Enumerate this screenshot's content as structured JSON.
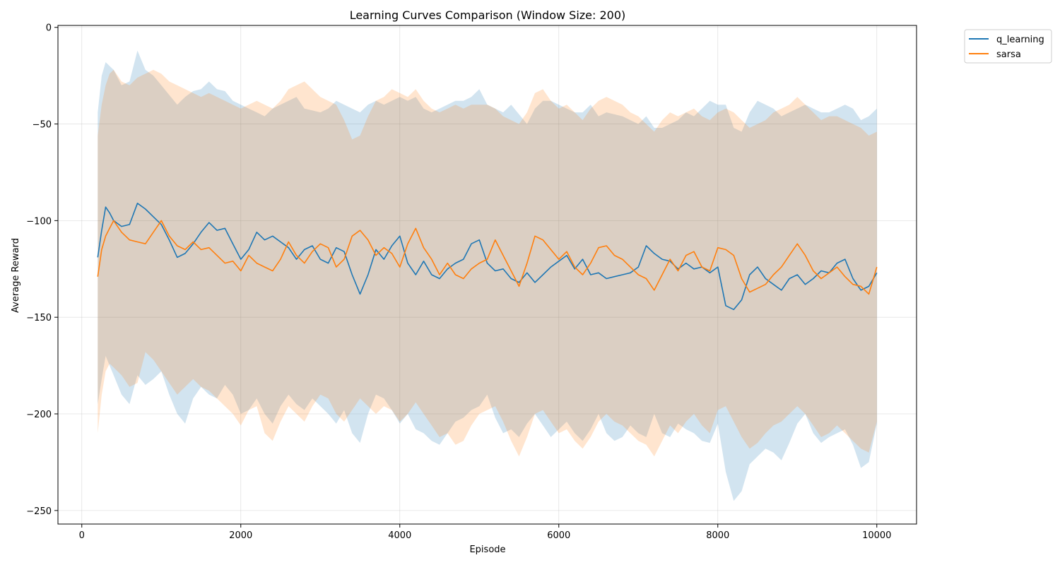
{
  "chart_data": {
    "type": "line",
    "title": "Learning Curves Comparison (Window Size: 200)",
    "xlabel": "Episode",
    "ylabel": "Average Reward",
    "xlim": [
      -300,
      10500
    ],
    "ylim": [
      -257,
      1
    ],
    "xticks": [
      0,
      2000,
      4000,
      6000,
      8000,
      10000
    ],
    "yticks": [
      0,
      -50,
      -100,
      -150,
      -200,
      -250
    ],
    "grid": true,
    "legend_position": "outside top-right",
    "x": [
      200,
      250,
      300,
      350,
      400,
      500,
      600,
      700,
      800,
      900,
      1000,
      1100,
      1200,
      1300,
      1400,
      1500,
      1600,
      1700,
      1800,
      1900,
      2000,
      2100,
      2200,
      2300,
      2400,
      2500,
      2600,
      2700,
      2800,
      2900,
      3000,
      3100,
      3200,
      3300,
      3400,
      3500,
      3600,
      3700,
      3800,
      3900,
      4000,
      4100,
      4200,
      4300,
      4400,
      4500,
      4600,
      4700,
      4800,
      4900,
      5000,
      5100,
      5200,
      5300,
      5400,
      5500,
      5600,
      5700,
      5800,
      5900,
      6000,
      6100,
      6200,
      6300,
      6400,
      6500,
      6600,
      6700,
      6800,
      6900,
      7000,
      7100,
      7200,
      7300,
      7400,
      7500,
      7600,
      7700,
      7800,
      7900,
      8000,
      8100,
      8200,
      8300,
      8400,
      8500,
      8600,
      8700,
      8800,
      8900,
      9000,
      9100,
      9200,
      9300,
      9400,
      9500,
      9600,
      9700,
      9800,
      9900,
      10000
    ],
    "series": [
      {
        "name": "q_learning",
        "color": "#1f77b4",
        "y": [
          -119,
          -105,
          -93,
          -96,
          -100,
          -103,
          -102,
          -91,
          -94,
          -98,
          -102,
          -110,
          -119,
          -117,
          -112,
          -106,
          -101,
          -105,
          -104,
          -112,
          -120,
          -115,
          -106,
          -110,
          -108,
          -111,
          -114,
          -120,
          -115,
          -113,
          -120,
          -122,
          -114,
          -116,
          -128,
          -138,
          -128,
          -115,
          -120,
          -113,
          -108,
          -122,
          -128,
          -121,
          -128,
          -130,
          -125,
          -122,
          -120,
          -112,
          -110,
          -122,
          -126,
          -125,
          -130,
          -132,
          -127,
          -132,
          -128,
          -124,
          -121,
          -118,
          -125,
          -120,
          -128,
          -127,
          -130,
          -129,
          -128,
          -127,
          -124,
          -113,
          -117,
          -120,
          -121,
          -125,
          -122,
          -125,
          -124,
          -127,
          -124,
          -144,
          -146,
          -141,
          -128,
          -124,
          -130,
          -133,
          -136,
          -130,
          -128,
          -133,
          -130,
          -126,
          -127,
          -122,
          -120,
          -130,
          -136,
          -134,
          -127
        ],
        "upper": [
          -44,
          -25,
          -18,
          -20,
          -22,
          -30,
          -28,
          -12,
          -22,
          -25,
          -30,
          -35,
          -40,
          -36,
          -33,
          -32,
          -28,
          -32,
          -33,
          -38,
          -40,
          -42,
          -44,
          -46,
          -42,
          -40,
          -38,
          -36,
          -42,
          -43,
          -44,
          -42,
          -38,
          -40,
          -42,
          -44,
          -40,
          -38,
          -40,
          -38,
          -36,
          -38,
          -36,
          -42,
          -44,
          -42,
          -40,
          -38,
          -38,
          -36,
          -32,
          -40,
          -42,
          -44,
          -40,
          -45,
          -50,
          -42,
          -38,
          -38,
          -40,
          -42,
          -44,
          -44,
          -40,
          -46,
          -44,
          -45,
          -46,
          -48,
          -50,
          -46,
          -52,
          -52,
          -50,
          -48,
          -44,
          -46,
          -42,
          -38,
          -40,
          -40,
          -52,
          -54,
          -44,
          -38,
          -40,
          -42,
          -46,
          -44,
          -42,
          -40,
          -42,
          -44,
          -44,
          -42,
          -40,
          -42,
          -48,
          -46,
          -42
        ],
        "lower": [
          -195,
          -182,
          -170,
          -175,
          -180,
          -190,
          -195,
          -180,
          -185,
          -182,
          -178,
          -190,
          -200,
          -205,
          -192,
          -186,
          -190,
          -192,
          -185,
          -190,
          -200,
          -198,
          -192,
          -200,
          -205,
          -196,
          -190,
          -195,
          -198,
          -192,
          -196,
          -200,
          -205,
          -198,
          -210,
          -215,
          -200,
          -190,
          -192,
          -198,
          -205,
          -200,
          -208,
          -210,
          -214,
          -216,
          -210,
          -204,
          -202,
          -198,
          -196,
          -190,
          -202,
          -210,
          -208,
          -212,
          -205,
          -200,
          -206,
          -212,
          -208,
          -204,
          -210,
          -214,
          -208,
          -200,
          -210,
          -214,
          -212,
          -206,
          -210,
          -212,
          -200,
          -210,
          -212,
          -205,
          -208,
          -210,
          -214,
          -215,
          -205,
          -230,
          -245,
          -240,
          -226,
          -222,
          -218,
          -220,
          -224,
          -215,
          -205,
          -200,
          -210,
          -215,
          -212,
          -210,
          -208,
          -216,
          -228,
          -225,
          -205
        ]
      },
      {
        "name": "sarsa",
        "color": "#ff7f0e",
        "y": [
          -129,
          -115,
          -108,
          -104,
          -100,
          -106,
          -110,
          -111,
          -112,
          -106,
          -100,
          -108,
          -113,
          -115,
          -111,
          -115,
          -114,
          -118,
          -122,
          -121,
          -126,
          -118,
          -122,
          -124,
          -126,
          -120,
          -111,
          -118,
          -122,
          -116,
          -112,
          -114,
          -124,
          -120,
          -108,
          -105,
          -110,
          -118,
          -114,
          -117,
          -124,
          -112,
          -104,
          -114,
          -120,
          -128,
          -122,
          -128,
          -130,
          -125,
          -122,
          -120,
          -110,
          -118,
          -126,
          -134,
          -122,
          -108,
          -110,
          -115,
          -120,
          -116,
          -124,
          -128,
          -122,
          -114,
          -113,
          -118,
          -120,
          -124,
          -128,
          -130,
          -136,
          -128,
          -120,
          -126,
          -118,
          -116,
          -124,
          -126,
          -114,
          -115,
          -118,
          -130,
          -137,
          -135,
          -133,
          -128,
          -124,
          -118,
          -112,
          -118,
          -126,
          -130,
          -127,
          -124,
          -129,
          -133,
          -134,
          -138,
          -124
        ],
        "upper": [
          -56,
          -40,
          -30,
          -24,
          -22,
          -28,
          -30,
          -26,
          -24,
          -22,
          -24,
          -28,
          -30,
          -32,
          -34,
          -36,
          -34,
          -36,
          -38,
          -40,
          -42,
          -40,
          -38,
          -40,
          -42,
          -38,
          -32,
          -30,
          -28,
          -32,
          -36,
          -38,
          -40,
          -48,
          -58,
          -56,
          -46,
          -38,
          -36,
          -32,
          -34,
          -36,
          -32,
          -38,
          -42,
          -44,
          -42,
          -40,
          -42,
          -40,
          -40,
          -40,
          -42,
          -46,
          -48,
          -50,
          -44,
          -34,
          -32,
          -38,
          -42,
          -40,
          -44,
          -48,
          -42,
          -38,
          -36,
          -38,
          -40,
          -44,
          -46,
          -50,
          -54,
          -48,
          -44,
          -46,
          -44,
          -42,
          -46,
          -48,
          -44,
          -42,
          -44,
          -48,
          -52,
          -50,
          -48,
          -44,
          -42,
          -40,
          -36,
          -40,
          -44,
          -48,
          -46,
          -46,
          -48,
          -50,
          -52,
          -56,
          -54
        ],
        "lower": [
          -210,
          -190,
          -178,
          -174,
          -176,
          -180,
          -186,
          -184,
          -168,
          -172,
          -178,
          -184,
          -190,
          -186,
          -182,
          -186,
          -188,
          -192,
          -196,
          -200,
          -206,
          -198,
          -196,
          -210,
          -214,
          -204,
          -196,
          -200,
          -204,
          -196,
          -190,
          -192,
          -200,
          -204,
          -198,
          -192,
          -196,
          -200,
          -196,
          -198,
          -204,
          -200,
          -194,
          -200,
          -206,
          -212,
          -210,
          -216,
          -214,
          -206,
          -200,
          -198,
          -196,
          -204,
          -214,
          -222,
          -212,
          -200,
          -198,
          -204,
          -210,
          -208,
          -214,
          -218,
          -212,
          -204,
          -200,
          -204,
          -206,
          -210,
          -214,
          -216,
          -222,
          -214,
          -206,
          -210,
          -204,
          -200,
          -206,
          -210,
          -198,
          -196,
          -204,
          -212,
          -218,
          -215,
          -210,
          -206,
          -204,
          -200,
          -196,
          -200,
          -206,
          -212,
          -210,
          -206,
          -210,
          -214,
          -218,
          -220,
          -204
        ]
      }
    ]
  }
}
